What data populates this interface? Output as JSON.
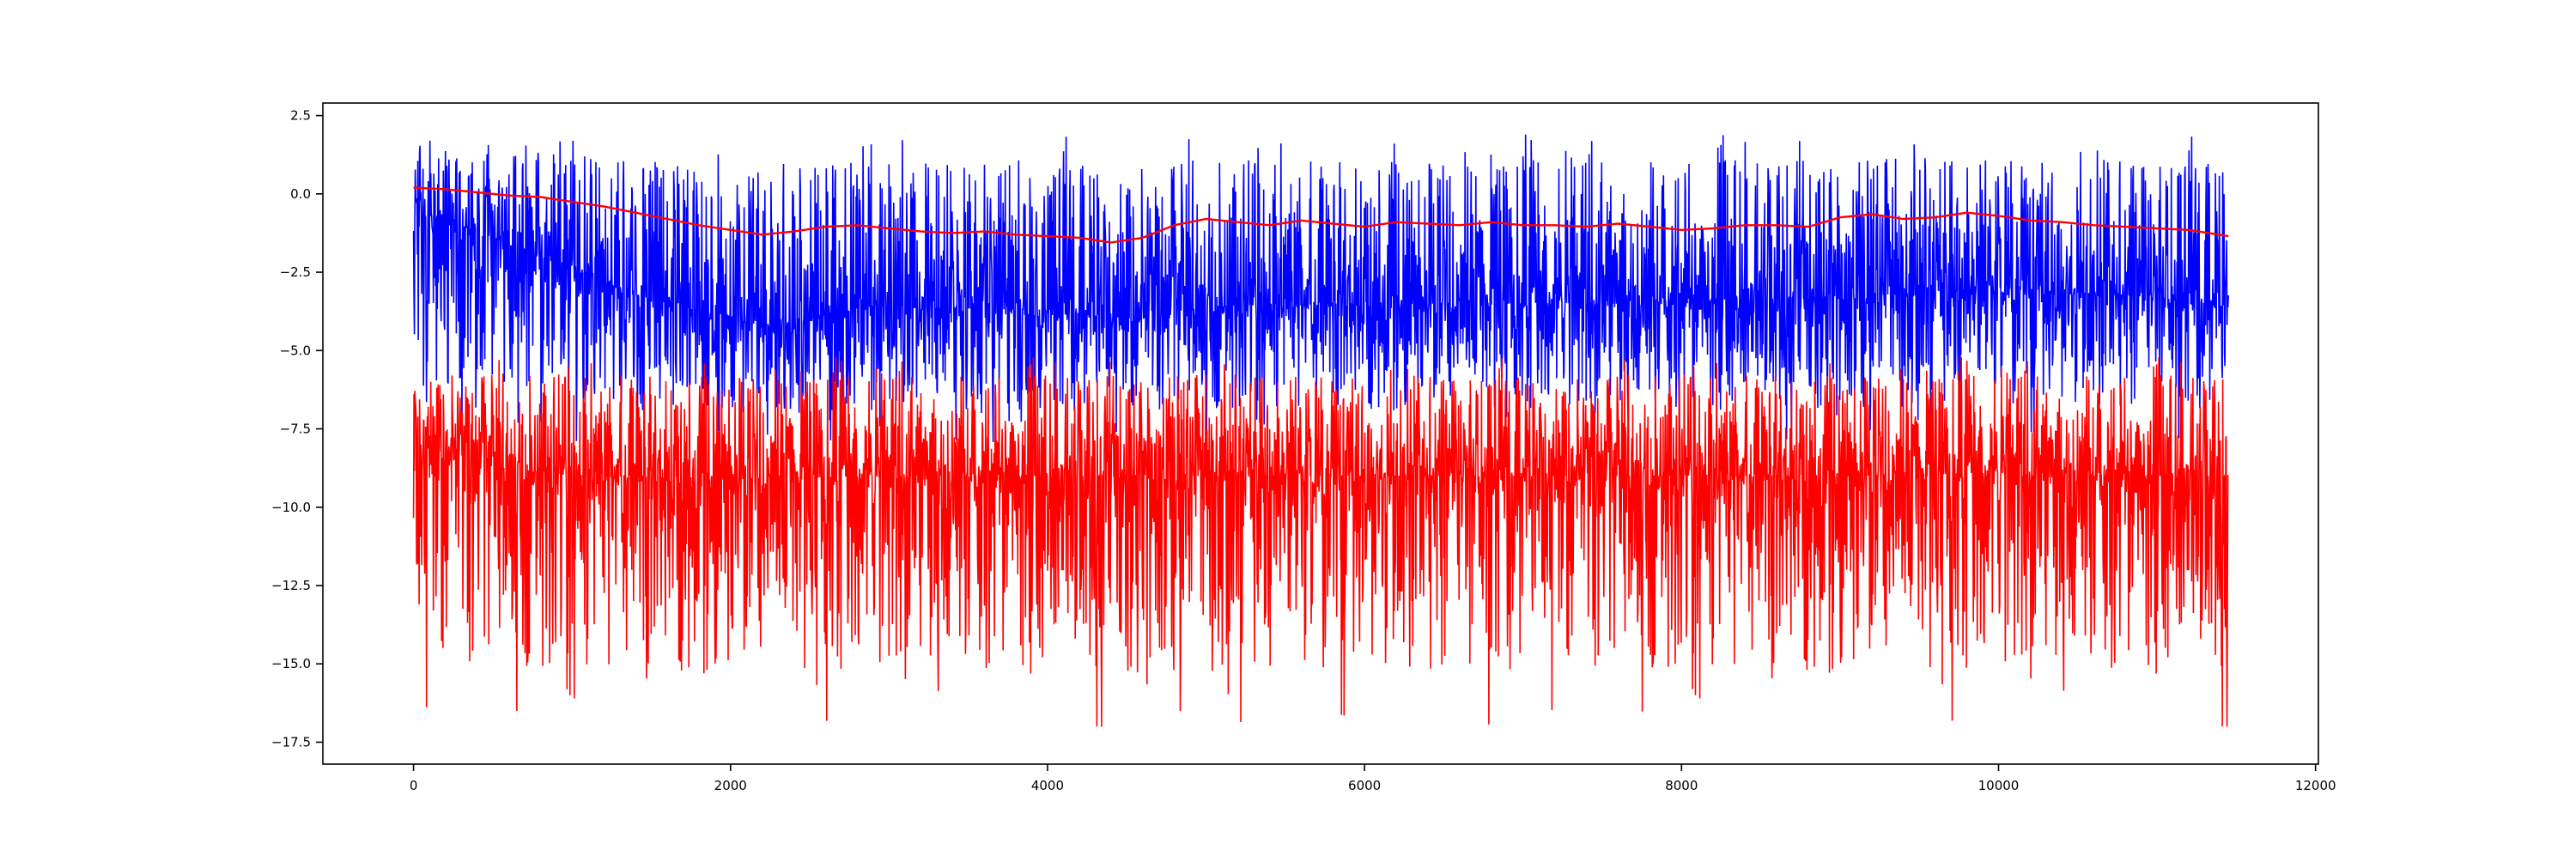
{
  "chart_data": {
    "type": "line",
    "title": "",
    "xlabel": "",
    "ylabel": "",
    "xlim": [
      -572,
      12018
    ],
    "ylim": [
      -18.2,
      2.9
    ],
    "grid": false,
    "x_ticks": [
      0,
      2000,
      4000,
      6000,
      8000,
      10000,
      12000
    ],
    "x_tick_labels": [
      "0",
      "2000",
      "4000",
      "6000",
      "8000",
      "10000",
      "12000"
    ],
    "y_ticks": [
      2.5,
      0.0,
      -2.5,
      -5.0,
      -7.5,
      -10.0,
      -12.5,
      -15.0,
      -17.5
    ],
    "y_tick_labels": [
      "2.5",
      "0.0",
      "−2.5",
      "−5.0",
      "−7.5",
      "−10.0",
      "−12.5",
      "−15.0",
      "−17.5"
    ],
    "series": [
      {
        "color": "#0000ff",
        "style": "noisy",
        "n_points": 11450,
        "x_range": [
          0,
          11450
        ],
        "trend_x": [
          0,
          300,
          700,
          1000,
          1300,
          1700,
          2000,
          2300,
          2600,
          3000,
          4000,
          4500,
          5000,
          6000,
          7000,
          8000,
          9000,
          10000,
          11000,
          11450
        ],
        "trend_y": [
          -0.6,
          -1.0,
          -1.8,
          -2.4,
          -3.0,
          -3.6,
          -3.9,
          -4.2,
          -3.8,
          -3.6,
          -3.7,
          -4.0,
          -3.6,
          -3.5,
          -3.5,
          -3.4,
          -3.3,
          -3.0,
          -3.3,
          -3.6
        ],
        "upper_extreme": 1.9,
        "lower_extreme": -8.0
      },
      {
        "color": "#ff0000",
        "style": "noisy",
        "n_points": 11450,
        "x_range": [
          0,
          11450
        ],
        "trend_x": [
          0,
          500,
          1000,
          2000,
          3000,
          4000,
          5000,
          6000,
          7000,
          8000,
          9000,
          10000,
          11000,
          11450
        ],
        "trend_y": [
          -8.0,
          -8.7,
          -9.0,
          -9.1,
          -9.0,
          -9.0,
          -9.0,
          -9.0,
          -9.0,
          -9.0,
          -9.0,
          -8.9,
          -9.0,
          -9.0
        ],
        "upper_extreme": -5.2,
        "lower_extreme": -17.3
      },
      {
        "color": "#ff0000",
        "style": "smooth",
        "x": [
          0,
          200,
          400,
          600,
          800,
          1000,
          1200,
          1400,
          1600,
          1800,
          2000,
          2200,
          2400,
          2600,
          2800,
          3000,
          3200,
          3400,
          3600,
          3800,
          4000,
          4200,
          4400,
          4600,
          4800,
          5000,
          5200,
          5400,
          5600,
          5800,
          6000,
          6200,
          6400,
          6600,
          6800,
          7000,
          7200,
          7400,
          7600,
          7800,
          8000,
          8200,
          8400,
          8600,
          8800,
          9000,
          9200,
          9400,
          9600,
          9800,
          10000,
          10200,
          10400,
          10600,
          10800,
          11000,
          11200,
          11450
        ],
        "y": [
          0.2,
          0.15,
          0.05,
          -0.05,
          -0.1,
          -0.25,
          -0.4,
          -0.6,
          -0.8,
          -1.0,
          -1.15,
          -1.3,
          -1.2,
          -1.05,
          -1.0,
          -1.1,
          -1.2,
          -1.25,
          -1.2,
          -1.3,
          -1.35,
          -1.4,
          -1.55,
          -1.4,
          -1.0,
          -0.8,
          -0.9,
          -1.0,
          -0.85,
          -0.95,
          -1.05,
          -0.9,
          -0.95,
          -1.0,
          -0.9,
          -1.0,
          -1.0,
          -1.05,
          -0.95,
          -1.05,
          -1.15,
          -1.1,
          -1.0,
          -1.0,
          -1.05,
          -0.75,
          -0.65,
          -0.8,
          -0.75,
          -0.6,
          -0.7,
          -0.85,
          -0.9,
          -1.0,
          -1.05,
          -1.1,
          -1.15,
          -1.35
        ]
      }
    ]
  }
}
